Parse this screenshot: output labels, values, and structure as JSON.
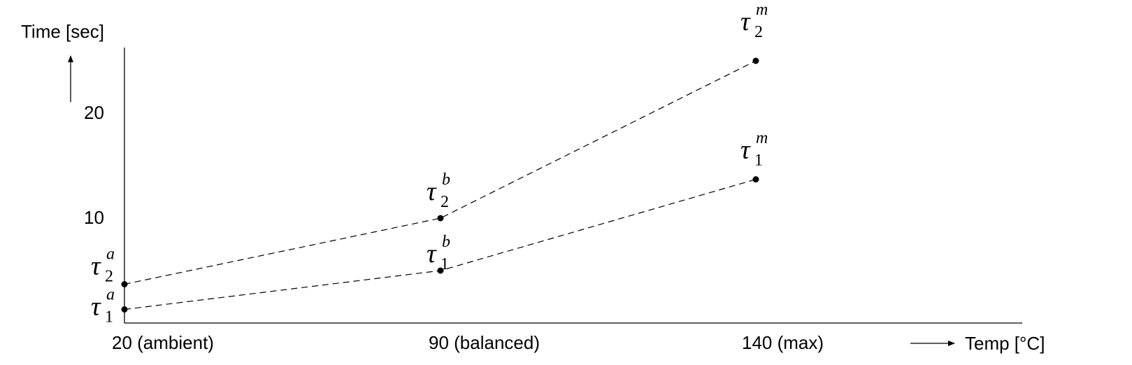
{
  "chart_data": {
    "type": "line",
    "ylabel": "Time [sec]",
    "xlabel": "Temp [°C]",
    "x_ticks": [
      "20 (ambient)",
      "90 (balanced)",
      "140 (max)"
    ],
    "y_ticks": [
      "20",
      "10"
    ],
    "ylim": [
      0,
      26
    ],
    "grid": false,
    "line_style": "dashed",
    "color": "#000000",
    "series": [
      {
        "points": [
          {
            "x": "20 (ambient)",
            "y": 1.3,
            "symbol": "τ",
            "sub": "1",
            "sup": "a"
          },
          {
            "x": "90 (balanced)",
            "y": 5.0,
            "symbol": "τ",
            "sub": "1",
            "sup": "b"
          },
          {
            "x": "140 (max)",
            "y": 13.7,
            "symbol": "τ",
            "sub": "1",
            "sup": "m"
          }
        ]
      },
      {
        "points": [
          {
            "x": "20 (ambient)",
            "y": 3.7,
            "symbol": "τ",
            "sub": "2",
            "sup": "a"
          },
          {
            "x": "90 (balanced)",
            "y": 10.0,
            "symbol": "τ",
            "sub": "2",
            "sup": "b"
          },
          {
            "x": "140 (max)",
            "y": 25.0,
            "symbol": "τ",
            "sub": "2",
            "sup": "m"
          }
        ]
      }
    ]
  }
}
